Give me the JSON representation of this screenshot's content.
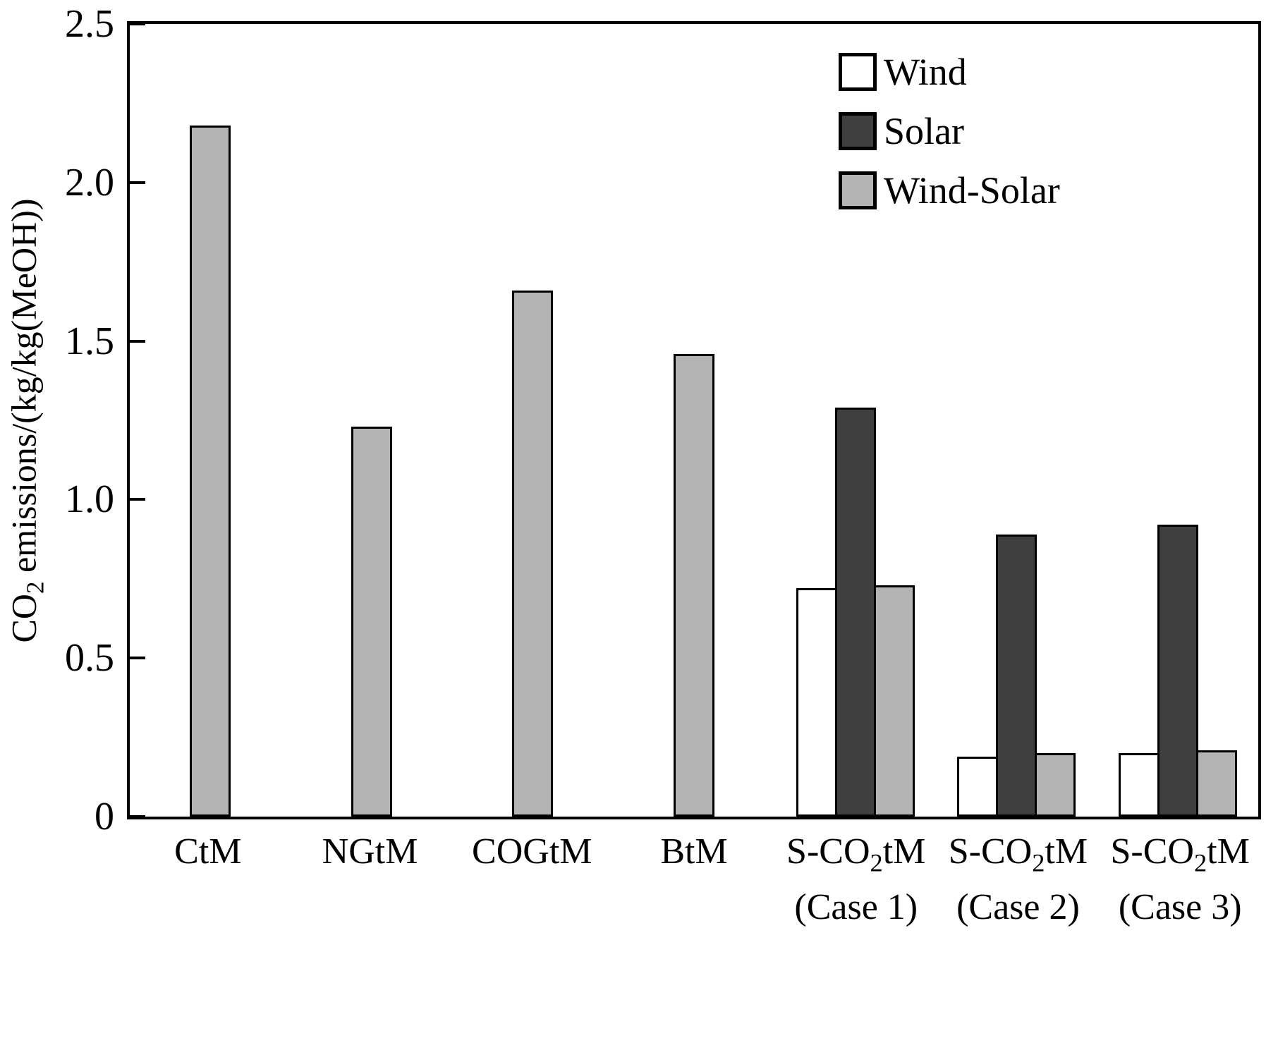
{
  "chart_data": {
    "type": "bar",
    "title": "",
    "xlabel": "",
    "ylabel": "CO_2 emissions/(kg/kg(MeOH))",
    "ylim": [
      0,
      2.5
    ],
    "yticks": [
      0,
      0.5,
      1.0,
      1.5,
      2.0,
      2.5
    ],
    "grid": false,
    "categories": [
      "CtM",
      "NGtM",
      "COGtM",
      "BtM",
      "S-CO_2tM\n(Case 1)",
      "S-CO_2tM\n(Case 2)",
      "S-CO_2tM\n(Case 3)"
    ],
    "series": [
      {
        "name": "Wind",
        "color": "#ffffff",
        "values": [
          null,
          null,
          null,
          null,
          0.72,
          0.19,
          0.2
        ]
      },
      {
        "name": "Solar",
        "color": "#3f3f3f",
        "values": [
          null,
          null,
          null,
          null,
          1.29,
          0.89,
          0.92
        ]
      },
      {
        "name": "Wind-Solar",
        "color": "#b4b4b4",
        "values": [
          2.18,
          1.23,
          1.66,
          1.46,
          0.73,
          0.2,
          0.21
        ]
      }
    ],
    "legend": {
      "position": "top-right",
      "entries": [
        "Wind",
        "Solar",
        "Wind-Solar"
      ]
    },
    "bar_border_color": "#000000",
    "axis_color": "#000000"
  }
}
